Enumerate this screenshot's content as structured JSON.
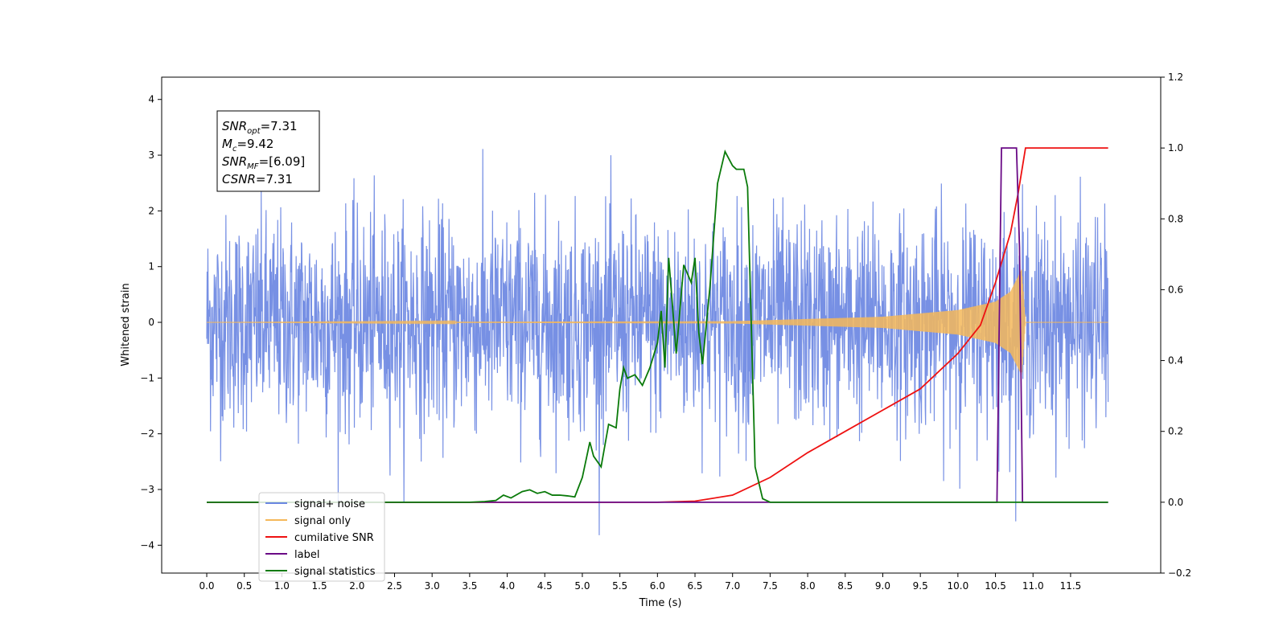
{
  "chart_data": {
    "type": "line",
    "xlabel": "Time (s)",
    "ylabel": "Whitened strain",
    "xlim": [
      -0.6,
      12.7
    ],
    "ylim": [
      -4.5,
      4.4
    ],
    "ylim_right": [
      -0.2,
      1.2
    ],
    "x_ticks": [
      0.0,
      0.5,
      1.0,
      1.5,
      2.0,
      2.5,
      3.0,
      3.5,
      4.0,
      4.5,
      5.0,
      5.5,
      6.0,
      6.5,
      7.0,
      7.5,
      8.0,
      8.5,
      9.0,
      9.5,
      10.0,
      10.5,
      11.0,
      11.5
    ],
    "x_tick_labels": [
      "0.0",
      "0.5",
      "1.0",
      "1.5",
      "2.0",
      "2.5",
      "3.0",
      "3.5",
      "4.0",
      "4.5",
      "5.0",
      "5.5",
      "6.0",
      "6.5",
      "7.0",
      "7.5",
      "8.0",
      "8.5",
      "9.0",
      "9.5",
      "10.0",
      "10.5",
      "11.0",
      "11.5"
    ],
    "y_ticks_left": [
      -4,
      -3,
      -2,
      -1,
      0,
      1,
      2,
      3,
      4
    ],
    "y_tick_labels_left": [
      "−4",
      "−3",
      "−2",
      "−1",
      "0",
      "1",
      "2",
      "3",
      "4"
    ],
    "y_ticks_right": [
      -0.2,
      0.0,
      0.2,
      0.4,
      0.6,
      0.8,
      1.0,
      1.2
    ],
    "y_tick_labels_right": [
      "−0.2",
      "0.0",
      "0.2",
      "0.4",
      "0.6",
      "0.8",
      "1.0",
      "1.2"
    ],
    "grid": false,
    "legend_position": "lower-left",
    "colors": {
      "noise": "#6b87e2",
      "signal": "#f5b85a",
      "cumulative_snr": "#ee1111",
      "label": "#6a0a86",
      "statistics": "#0a7a0a"
    },
    "annotation_box": {
      "lines": [
        {
          "base": "SNR",
          "sub": "opt",
          "rest": "=7.31"
        },
        {
          "base": "M",
          "sub": "c",
          "rest": "=9.42"
        },
        {
          "base": "SNR",
          "sub": "MF",
          "rest": "=[6.09]"
        },
        {
          "base": "CSNR",
          "sub": "",
          "rest": "=7.31"
        }
      ]
    },
    "legend": [
      {
        "label": "signal+ noise",
        "color": "#6b87e2"
      },
      {
        "label": "signal only",
        "color": "#f5b85a"
      },
      {
        "label": "cumilative SNR",
        "color": "#ee1111"
      },
      {
        "label": "label",
        "color": "#6a0a86"
      },
      {
        "label": "signal statistics",
        "color": "#0a7a0a"
      }
    ],
    "series": [
      {
        "name": "signal+ noise",
        "axis": "left",
        "t_range": [
          0.0,
          12.0
        ],
        "typical_amplitude": 1.5,
        "peak_amplitude": 4.0,
        "description": "dense whitened-noise trace"
      },
      {
        "name": "signal only",
        "axis": "left",
        "t_range": [
          0.0,
          10.9
        ],
        "envelope": {
          "t": [
            0.0,
            7.0,
            8.0,
            9.0,
            10.0,
            10.5,
            10.7,
            10.85,
            10.9
          ],
          "a": [
            0.0,
            0.02,
            0.06,
            0.1,
            0.22,
            0.37,
            0.55,
            0.95,
            0.0
          ]
        }
      },
      {
        "name": "cumilative SNR",
        "axis": "right",
        "x": [
          0.0,
          6.0,
          6.5,
          7.0,
          7.5,
          8.0,
          8.5,
          9.0,
          9.5,
          10.0,
          10.3,
          10.5,
          10.7,
          10.8,
          10.9,
          11.0,
          12.0
        ],
        "y": [
          0.0,
          0.0,
          0.003,
          0.02,
          0.07,
          0.14,
          0.2,
          0.26,
          0.32,
          0.42,
          0.5,
          0.62,
          0.76,
          0.87,
          1.0,
          1.0,
          1.0
        ]
      },
      {
        "name": "label",
        "axis": "right",
        "x": [
          0.0,
          10.5,
          10.52,
          10.58,
          10.62,
          10.78,
          10.82,
          10.86,
          10.9,
          12.0
        ],
        "y": [
          0.0,
          0.0,
          0.0,
          1.0,
          1.0,
          1.0,
          0.72,
          0.0,
          0.0,
          0.0
        ]
      },
      {
        "name": "signal statistics",
        "axis": "right",
        "x": [
          0.0,
          3.5,
          3.7,
          3.85,
          3.95,
          4.05,
          4.2,
          4.3,
          4.4,
          4.5,
          4.6,
          4.7,
          4.8,
          4.9,
          5.0,
          5.1,
          5.15,
          5.25,
          5.35,
          5.45,
          5.5,
          5.55,
          5.6,
          5.7,
          5.8,
          5.9,
          6.0,
          6.05,
          6.1,
          6.15,
          6.25,
          6.35,
          6.45,
          6.5,
          6.55,
          6.6,
          6.7,
          6.8,
          6.9,
          7.0,
          7.05,
          7.15,
          7.2,
          7.3,
          7.4,
          7.5,
          12.0
        ],
        "y": [
          0.0,
          0.0,
          0.002,
          0.005,
          0.02,
          0.012,
          0.03,
          0.035,
          0.025,
          0.03,
          0.02,
          0.02,
          0.018,
          0.015,
          0.07,
          0.17,
          0.13,
          0.1,
          0.22,
          0.21,
          0.32,
          0.38,
          0.35,
          0.36,
          0.33,
          0.38,
          0.45,
          0.54,
          0.38,
          0.69,
          0.42,
          0.67,
          0.62,
          0.69,
          0.48,
          0.39,
          0.61,
          0.9,
          0.99,
          0.95,
          0.94,
          0.94,
          0.89,
          0.1,
          0.01,
          0.0,
          0.0
        ]
      }
    ]
  }
}
